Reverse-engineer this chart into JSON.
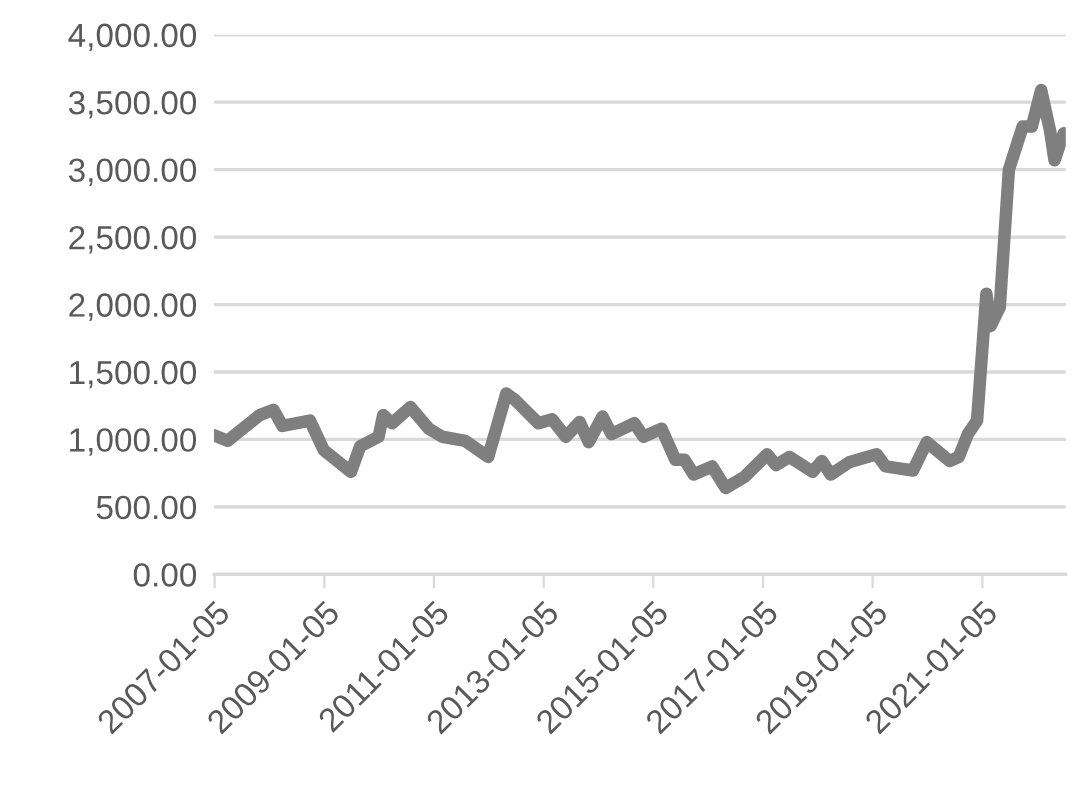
{
  "chart_data": {
    "type": "line",
    "x": [
      "2007-01",
      "2007-04",
      "2007-11",
      "2008-02",
      "2008-04",
      "2008-10",
      "2009-01",
      "2009-07",
      "2009-09",
      "2010-01",
      "2010-02",
      "2010-04",
      "2010-08",
      "2010-12",
      "2011-03",
      "2011-08",
      "2012-01",
      "2012-05",
      "2012-07",
      "2012-12",
      "2013-03",
      "2013-06",
      "2013-09",
      "2013-11",
      "2014-02",
      "2014-04",
      "2014-09",
      "2014-11",
      "2015-03",
      "2015-06",
      "2015-08",
      "2015-10",
      "2015-12",
      "2016-02",
      "2016-05",
      "2016-09",
      "2016-12",
      "2017-02",
      "2017-04",
      "2017-07",
      "2017-12",
      "2018-02",
      "2018-04",
      "2018-08",
      "2019-02",
      "2019-04",
      "2019-10",
      "2020-01",
      "2020-06",
      "2020-08",
      "2020-10",
      "2020-12",
      "2021-02",
      "2021-03",
      "2021-05",
      "2021-07",
      "2021-10",
      "2021-12",
      "2022-02",
      "2022-04",
      "2022-05",
      "2022-07"
    ],
    "series": [
      {
        "color": "#7f7f7f",
        "values": [
          1030,
          990,
          1180,
          1220,
          1100,
          1140,
          920,
          760,
          950,
          1020,
          1180,
          1120,
          1240,
          1080,
          1020,
          990,
          870,
          1340,
          1290,
          1120,
          1150,
          1020,
          1130,
          980,
          1170,
          1040,
          1120,
          1020,
          1080,
          850,
          850,
          740,
          770,
          800,
          640,
          720,
          820,
          890,
          810,
          870,
          760,
          840,
          740,
          830,
          890,
          800,
          770,
          980,
          840,
          870,
          1040,
          1140,
          2080,
          1840,
          1980,
          3000,
          3320,
          3320,
          3590,
          3290,
          3070,
          3270
        ]
      }
    ],
    "xlim": [
      "2007-01-01",
      "2022-07-15"
    ],
    "xticks": [
      "2007-01-05",
      "2009-01-05",
      "2011-01-05",
      "2013-01-05",
      "2015-01-05",
      "2017-01-05",
      "2019-01-05",
      "2021-01-05"
    ],
    "ylim": [
      0,
      4000
    ],
    "yticks": [
      {
        "value": 0,
        "label": "0.00"
      },
      {
        "value": 500,
        "label": "500.00"
      },
      {
        "value": 1000,
        "label": "1,000.00"
      },
      {
        "value": 1500,
        "label": "1,500.00"
      },
      {
        "value": 2000,
        "label": "2,000.00"
      },
      {
        "value": 2500,
        "label": "2,500.00"
      },
      {
        "value": 3000,
        "label": "3,000.00"
      },
      {
        "value": 3500,
        "label": "3,500.00"
      },
      {
        "value": 4000,
        "label": "4,000.00"
      }
    ],
    "grid": "y",
    "legend": false,
    "marker": "none",
    "line_style": "solid"
  }
}
